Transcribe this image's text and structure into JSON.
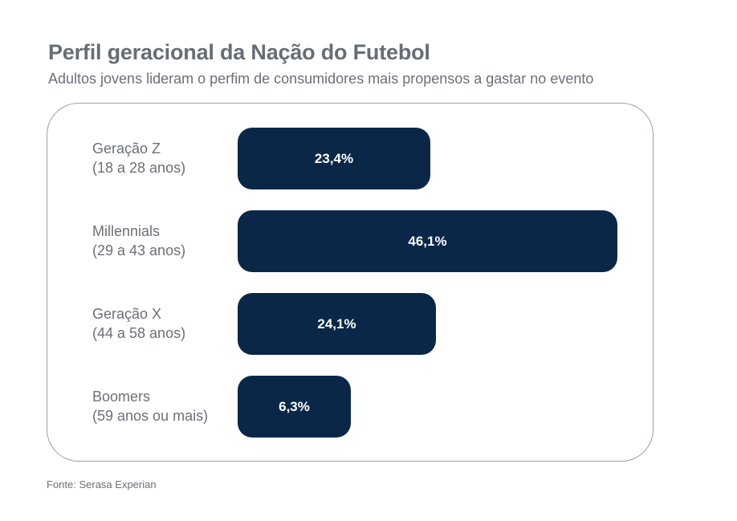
{
  "chart_data": {
    "type": "bar",
    "orientation": "horizontal",
    "title": "Perfil geracional da Nação do Futebol",
    "subtitle": "Adultos jovens lideram o perfim de consumidores mais propensos a gastar no evento",
    "categories": [
      {
        "name": "Geração Z",
        "range": "(18 a 28 anos)"
      },
      {
        "name": "Millennials",
        "range": "(29 a 43 anos)"
      },
      {
        "name": "Geração X",
        "range": "(44 a 58 anos)"
      },
      {
        "name": "Boomers",
        "range": "(59 anos ou mais)"
      }
    ],
    "values": [
      23.4,
      46.1,
      24.1,
      6.3
    ],
    "value_labels": [
      "23,4%",
      "46,1%",
      "24,1%",
      "6,3%"
    ],
    "unit": "%",
    "bar_color": "#0a2748",
    "grid": false,
    "source": "Fonte: Serasa Experian"
  }
}
